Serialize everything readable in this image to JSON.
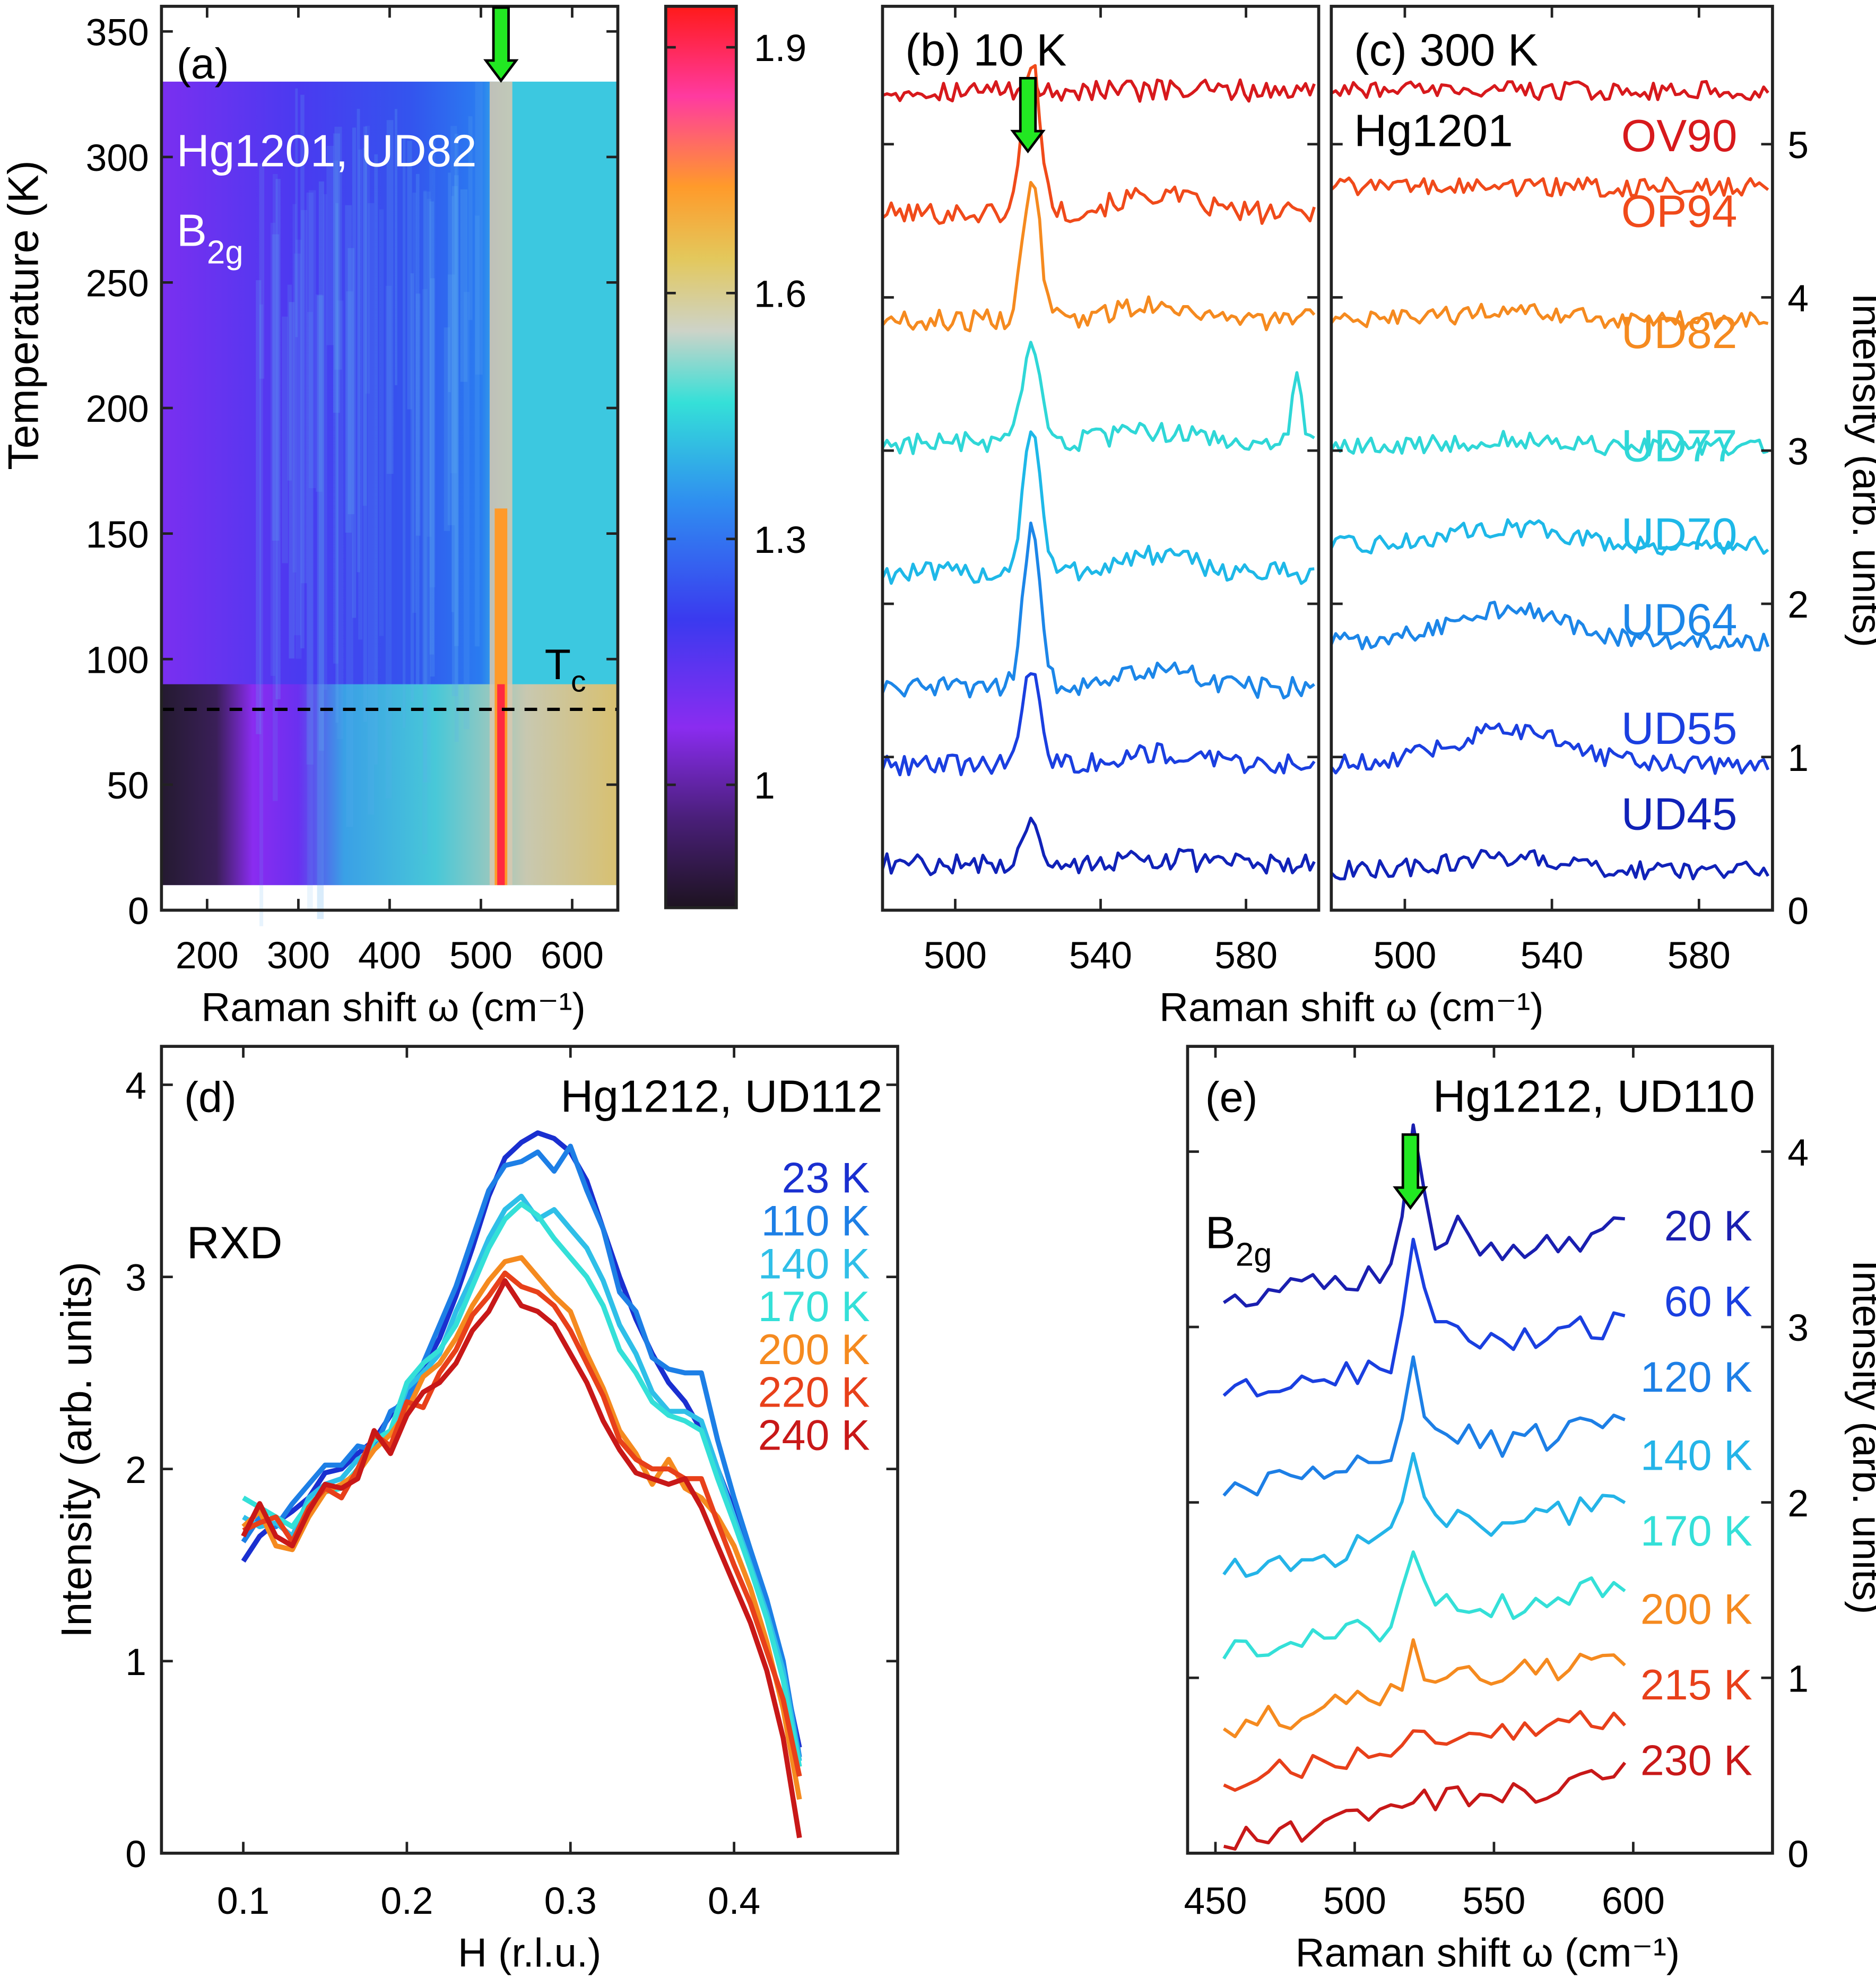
{
  "chart_data": [
    {
      "panel": "a",
      "type": "heatmap",
      "label": "(a)",
      "title_lines": [
        "Hg1201, UD82",
        "B"
      ],
      "title_sub": "2g",
      "xlabel": "Raman shift ω (cm⁻¹)",
      "ylabel": "Temperature (K)",
      "xlim": [
        150,
        650
      ],
      "ylim": [
        0,
        360
      ],
      "data_xlim": [
        150,
        650
      ],
      "data_ylim": [
        10,
        330
      ],
      "xticks": [
        200,
        300,
        400,
        500,
        600
      ],
      "yticks": [
        0,
        50,
        100,
        150,
        200,
        250,
        300,
        350
      ],
      "peak_position": 522,
      "arrow_x": 522,
      "tc_line_y": 80,
      "tc_label": "T",
      "tc_sub": "c",
      "colorbar": {
        "range": [
          0.85,
          1.95
        ],
        "ticks": [
          1,
          1.3,
          1.6,
          1.9
        ],
        "tick_labels": [
          "1",
          "1.3",
          "1.6",
          "1.9"
        ]
      }
    },
    {
      "panel": "b",
      "type": "line",
      "label": "(b) 10 K",
      "xlim": [
        480,
        600
      ],
      "xticks": [
        500,
        540,
        580
      ],
      "arrow_x": 520,
      "series": [
        {
          "name": "OV90",
          "offset": 5.35,
          "peak": 0.0,
          "color": "#d7191c"
        },
        {
          "name": "OP94",
          "offset": 4.55,
          "peak": 1.0,
          "color": "#f04a1a"
        },
        {
          "name": "UD82",
          "offset": 3.85,
          "peak": 0.9,
          "color": "#f58a1f"
        },
        {
          "name": "UD77",
          "offset": 3.05,
          "peak": 0.6,
          "color": "#2fd7d7"
        },
        {
          "name": "UD70",
          "offset": 2.2,
          "peak": 0.95,
          "color": "#1eb8e8"
        },
        {
          "name": "UD64",
          "offset": 1.45,
          "peak": 1.05,
          "color": "#1c86e8"
        },
        {
          "name": "UD55",
          "offset": 0.95,
          "peak": 0.65,
          "color": "#1a3fe0"
        },
        {
          "name": "UD45",
          "offset": 0.3,
          "peak": 0.3,
          "color": "#1022b8"
        }
      ]
    },
    {
      "panel": "c",
      "type": "line",
      "label": "(c) 300 K",
      "annotation": "Hg1201",
      "xlim": [
        480,
        600
      ],
      "xticks": [
        500,
        540,
        580
      ],
      "ylabel": "Intensity (arb. units)",
      "ylim": [
        0,
        5.9
      ],
      "yticks": [
        0,
        1,
        2,
        3,
        4,
        5
      ],
      "xlabel": "Raman shift ω (cm⁻¹)",
      "series": [
        {
          "name": "OV90",
          "offset": 5.35,
          "hump": 0.0
        },
        {
          "name": "OP94",
          "offset": 4.72,
          "hump": 0.0
        },
        {
          "name": "UD82",
          "offset": 3.85,
          "hump": 0.05
        },
        {
          "name": "UD77",
          "offset": 3.02,
          "hump": 0.05
        },
        {
          "name": "UD70",
          "offset": 2.38,
          "hump": 0.12
        },
        {
          "name": "UD64",
          "offset": 1.75,
          "hump": 0.22
        },
        {
          "name": "UD55",
          "offset": 0.95,
          "hump": 0.22
        },
        {
          "name": "UD45",
          "offset": 0.26,
          "hump": 0.08
        }
      ]
    },
    {
      "panel": "d",
      "type": "line",
      "label": "(d)",
      "title": "Hg1212, UD112",
      "annotation": "RXD",
      "xlabel": "H (r.l.u.)",
      "ylabel": "Intensity (arb. units)",
      "xlim": [
        0.05,
        0.5
      ],
      "ylim": [
        0,
        4.2
      ],
      "xticks": [
        0.1,
        0.2,
        0.3,
        0.4
      ],
      "yticks": [
        0,
        1,
        2,
        3,
        4
      ],
      "x": [
        0.1,
        0.11,
        0.12,
        0.13,
        0.14,
        0.15,
        0.16,
        0.17,
        0.18,
        0.19,
        0.2,
        0.21,
        0.22,
        0.23,
        0.24,
        0.25,
        0.26,
        0.27,
        0.28,
        0.29,
        0.3,
        0.31,
        0.32,
        0.33,
        0.34,
        0.35,
        0.36,
        0.37,
        0.38,
        0.39,
        0.4,
        0.41,
        0.42,
        0.43,
        0.44
      ],
      "series": [
        {
          "name": "23 K",
          "color": "#1a2fd0",
          "values": [
            1.52,
            1.65,
            1.72,
            1.78,
            1.85,
            1.98,
            2.0,
            2.08,
            2.15,
            2.28,
            2.38,
            2.52,
            2.68,
            2.9,
            3.15,
            3.42,
            3.62,
            3.7,
            3.75,
            3.72,
            3.65,
            3.5,
            3.25,
            3.0,
            2.78,
            2.6,
            2.45,
            2.35,
            2.2,
            2.0,
            1.78,
            1.55,
            1.28,
            0.95,
            0.55
          ]
        },
        {
          "name": "110 K",
          "color": "#1d7fe6",
          "values": [
            1.62,
            1.75,
            1.7,
            1.82,
            1.92,
            2.02,
            2.02,
            2.12,
            2.1,
            2.3,
            2.35,
            2.55,
            2.75,
            2.95,
            3.2,
            3.45,
            3.58,
            3.6,
            3.65,
            3.55,
            3.68,
            3.45,
            3.25,
            2.92,
            2.82,
            2.58,
            2.52,
            2.5,
            2.5,
            2.15,
            1.85,
            1.58,
            1.32,
            1.0,
            0.5
          ]
        },
        {
          "name": "140 K",
          "color": "#2fbfe8",
          "values": [
            1.75,
            1.7,
            1.72,
            1.65,
            1.85,
            1.92,
            1.95,
            2.05,
            2.1,
            2.2,
            2.42,
            2.5,
            2.6,
            2.82,
            3.0,
            3.2,
            3.35,
            3.42,
            3.3,
            3.35,
            3.25,
            3.15,
            2.98,
            2.75,
            2.6,
            2.4,
            2.3,
            2.3,
            2.25,
            2.0,
            1.75,
            1.5,
            1.25,
            0.95,
            0.48
          ]
        },
        {
          "name": "170 K",
          "color": "#34e0d8",
          "values": [
            1.85,
            1.8,
            1.75,
            1.7,
            1.82,
            1.88,
            1.9,
            2.0,
            2.15,
            2.2,
            2.45,
            2.55,
            2.62,
            2.75,
            2.95,
            3.15,
            3.3,
            3.38,
            3.32,
            3.2,
            3.1,
            3.0,
            2.85,
            2.62,
            2.5,
            2.35,
            2.28,
            2.25,
            2.2,
            1.95,
            1.72,
            1.48,
            1.22,
            0.9,
            0.45
          ]
        },
        {
          "name": "200 K",
          "color": "#f58a1f",
          "values": [
            1.7,
            1.78,
            1.6,
            1.58,
            1.75,
            1.88,
            1.92,
            1.98,
            2.1,
            2.18,
            2.3,
            2.48,
            2.55,
            2.68,
            2.85,
            2.98,
            3.08,
            3.1,
            3.0,
            2.9,
            2.82,
            2.6,
            2.42,
            2.2,
            2.08,
            1.92,
            2.05,
            1.9,
            1.85,
            1.75,
            1.6,
            1.38,
            1.1,
            0.75,
            0.28
          ]
        },
        {
          "name": "220 K",
          "color": "#e8401a",
          "values": [
            1.68,
            1.72,
            1.75,
            1.62,
            1.8,
            1.9,
            1.85,
            2.0,
            2.18,
            2.12,
            2.35,
            2.32,
            2.5,
            2.62,
            2.8,
            2.9,
            3.02,
            2.95,
            2.92,
            2.85,
            2.72,
            2.55,
            2.38,
            2.15,
            2.05,
            2.0,
            2.0,
            1.95,
            1.95,
            1.72,
            1.5,
            1.3,
            1.05,
            0.8,
            0.4
          ]
        },
        {
          "name": "240 K",
          "color": "#c81818",
          "values": [
            1.65,
            1.82,
            1.65,
            1.6,
            1.78,
            1.92,
            1.9,
            1.95,
            2.2,
            2.08,
            2.28,
            2.4,
            2.45,
            2.55,
            2.72,
            2.82,
            2.98,
            2.85,
            2.82,
            2.75,
            2.6,
            2.45,
            2.25,
            2.1,
            1.98,
            1.95,
            1.92,
            1.95,
            1.8,
            1.6,
            1.4,
            1.2,
            0.95,
            0.6,
            0.08
          ]
        }
      ]
    },
    {
      "panel": "e",
      "type": "line",
      "label": "(e)",
      "title": "Hg1212, UD110",
      "annotation": "B",
      "annotation_sub": "2g",
      "xlabel": "Raman shift ω (cm⁻¹)",
      "ylabel": "Intensity (arb. units)",
      "xlim": [
        440,
        650
      ],
      "ylim": [
        0,
        4.6
      ],
      "xticks": [
        450,
        500,
        550,
        600
      ],
      "yticks": [
        0,
        1,
        2,
        3,
        4
      ],
      "arrow_x": 520,
      "series": [
        {
          "name": "20 K",
          "offset": 3.15,
          "peak": 0.72,
          "color": "#1a1fb0"
        },
        {
          "name": "60 K",
          "offset": 2.62,
          "peak": 0.6,
          "color": "#1a3fe0"
        },
        {
          "name": "120 K",
          "offset": 2.05,
          "peak": 0.5,
          "color": "#1d7fe6"
        },
        {
          "name": "140 K",
          "offset": 1.6,
          "peak": 0.4,
          "color": "#24b4e8"
        },
        {
          "name": "170 K",
          "offset": 1.12,
          "peak": 0.32,
          "color": "#34e0d8"
        },
        {
          "name": "200 K",
          "offset": 0.72,
          "peak": 0.22,
          "color": "#f58a1f"
        },
        {
          "name": "215 K",
          "offset": 0.4,
          "peak": 0.18,
          "color": "#e8401a"
        },
        {
          "name": "230 K",
          "offset": 0.05,
          "peak": 0.12,
          "color": "#c81818"
        }
      ]
    }
  ]
}
